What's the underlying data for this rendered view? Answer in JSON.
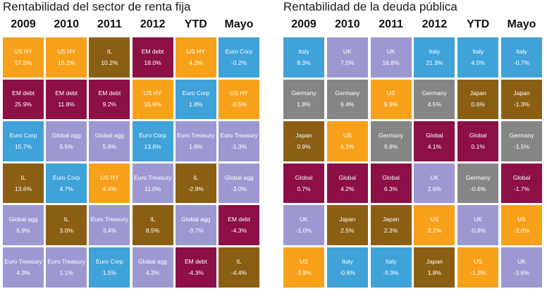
{
  "colors": {
    "US HY": "#f7a11a",
    "EM debt": "#8c0f46",
    "Euro Corp": "#3fa2d8",
    "IL": "#8a5f14",
    "Global agg": "#9d98d1",
    "Euro Treasury": "#9d98d1",
    "Italy": "#3fa2d8",
    "UK": "#9d98d1",
    "Germany": "#858585",
    "Japan": "#8a5f14",
    "US": "#f7a11a",
    "Global": "#8c0f46"
  },
  "chart_data": [
    {
      "type": "table",
      "title": "Rentabilidad del sector de renta fija",
      "columns": [
        "2009",
        "2010",
        "2011",
        "2012",
        "YTD",
        "Mayo"
      ],
      "cells": [
        [
          {
            "label": "US HY",
            "value": "57.5%"
          },
          {
            "label": "EM debt",
            "value": "25.9%"
          },
          {
            "label": "Euro Corp",
            "value": "15.7%"
          },
          {
            "label": "IL",
            "value": "13.6%"
          },
          {
            "label": "Global agg",
            "value": "6.9%"
          },
          {
            "label": "Euro Treasury",
            "value": "4.3%"
          }
        ],
        [
          {
            "label": "US HY",
            "value": "15.2%"
          },
          {
            "label": "EM debt",
            "value": "11.8%"
          },
          {
            "label": "Global agg",
            "value": "5.5%"
          },
          {
            "label": "Euro Corp",
            "value": "4.7%"
          },
          {
            "label": "IL",
            "value": "3.0%"
          },
          {
            "label": "Euro Treasury",
            "value": "1.1%"
          }
        ],
        [
          {
            "label": "IL",
            "value": "10.2%"
          },
          {
            "label": "EM debt",
            "value": "9.2%"
          },
          {
            "label": "Global agg",
            "value": "5.6%"
          },
          {
            "label": "US HY",
            "value": "4.4%"
          },
          {
            "label": "Euro Treasury",
            "value": "3.4%"
          },
          {
            "label": "Euro Corp",
            "value": "1.5%"
          }
        ],
        [
          {
            "label": "EM debt",
            "value": "18.0%"
          },
          {
            "label": "US HY",
            "value": "15.6%"
          },
          {
            "label": "Euro Corp",
            "value": "13.6%"
          },
          {
            "label": "Euro Treasury",
            "value": "11.0%"
          },
          {
            "label": "IL",
            "value": "8.5%"
          },
          {
            "label": "Global agg",
            "value": "4.3%"
          }
        ],
        [
          {
            "label": "US HY",
            "value": "4.2%"
          },
          {
            "label": "Euro Corp",
            "value": "1.8%"
          },
          {
            "label": "Euro Treasury",
            "value": "1.6%"
          },
          {
            "label": "IL",
            "value": "-2.9%"
          },
          {
            "label": "Global agg",
            "value": "-3.7%"
          },
          {
            "label": "EM debt",
            "value": "-4.3%"
          }
        ],
        [
          {
            "label": "Euro Corp",
            "value": "-0.2%"
          },
          {
            "label": "US HY",
            "value": "-0.5%"
          },
          {
            "label": "Euro Treasury",
            "value": "-1.3%"
          },
          {
            "label": "Global agg",
            "value": "-3.0%"
          },
          {
            "label": "EM debt",
            "value": "-4.3%"
          },
          {
            "label": "IL",
            "value": "-4.4%"
          }
        ]
      ]
    },
    {
      "type": "table",
      "title": "Rentabilidad de la deuda pública",
      "columns": [
        "2009",
        "2010",
        "2011",
        "2012",
        "YTD",
        "Mayo"
      ],
      "cells": [
        [
          {
            "label": "Italy",
            "value": "8.3%"
          },
          {
            "label": "Germany",
            "value": "1.8%"
          },
          {
            "label": "Japan",
            "value": "0.9%"
          },
          {
            "label": "Global",
            "value": "0.7%"
          },
          {
            "label": "UK",
            "value": "-1.0%"
          },
          {
            "label": "US",
            "value": "-3.8%"
          }
        ],
        [
          {
            "label": "UK",
            "value": "7.5%"
          },
          {
            "label": "Germany",
            "value": "6.4%"
          },
          {
            "label": "US",
            "value": "6.1%"
          },
          {
            "label": "Global",
            "value": "4.2%"
          },
          {
            "label": "Japan",
            "value": "2.5%"
          },
          {
            "label": "Italy",
            "value": "-0.6%"
          }
        ],
        [
          {
            "label": "UK",
            "value": "16.8%"
          },
          {
            "label": "US",
            "value": "9.9%"
          },
          {
            "label": "Germany",
            "value": "9.8%"
          },
          {
            "label": "Global",
            "value": "6.3%"
          },
          {
            "label": "Japan",
            "value": "2.3%"
          },
          {
            "label": "Italy",
            "value": "-5.9%"
          }
        ],
        [
          {
            "label": "Italy",
            "value": "21.3%"
          },
          {
            "label": "Germany",
            "value": "4.5%"
          },
          {
            "label": "Global",
            "value": "4.1%"
          },
          {
            "label": "UK",
            "value": "2.6%"
          },
          {
            "label": "US",
            "value": "2.2%"
          },
          {
            "label": "Japan",
            "value": "1.8%"
          }
        ],
        [
          {
            "label": "Italy",
            "value": "4.0%"
          },
          {
            "label": "Japan",
            "value": "0.6%"
          },
          {
            "label": "Global",
            "value": "0.1%"
          },
          {
            "label": "Germany",
            "value": "-0.6%"
          },
          {
            "label": "UK",
            "value": "-0.8%"
          },
          {
            "label": "US",
            "value": "-1.2%"
          }
        ],
        [
          {
            "label": "Italy",
            "value": "-0.7%"
          },
          {
            "label": "Japan",
            "value": "-1.3%"
          },
          {
            "label": "Germany",
            "value": "-1.5%"
          },
          {
            "label": "Global",
            "value": "-1.7%"
          },
          {
            "label": "US",
            "value": "-2.0%"
          },
          {
            "label": "UK",
            "value": "-2.6%"
          }
        ]
      ]
    }
  ]
}
